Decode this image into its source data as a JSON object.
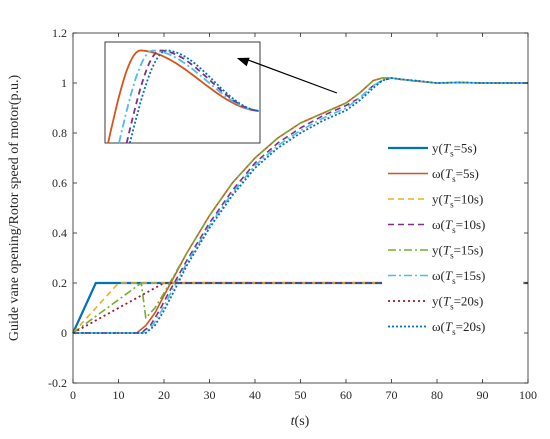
{
  "chart_data": {
    "type": "line",
    "title": "",
    "xlabel": {
      "var": "t",
      "unit": "(s)"
    },
    "ylabel": "Guide vane opening/Rotor speed of motor(p.u.)",
    "xlim": [
      0,
      100
    ],
    "ylim": [
      -0.2,
      1.2
    ],
    "xticks": [
      "0",
      "10",
      "20",
      "30",
      "40",
      "50",
      "60",
      "70",
      "80",
      "90",
      "100"
    ],
    "yticks": [
      "-0.2",
      "0",
      "0.2",
      "0.4",
      "0.6",
      "0.8",
      "1",
      "1.2"
    ],
    "grid": false,
    "legend_position": "right",
    "series": [
      {
        "name": "y(Ts=5s)",
        "legend": {
          "pre": "y(",
          "sym": "T",
          "sub": "s",
          "post": "=5s)"
        },
        "color": "#0072BD",
        "dash": "",
        "width": 2.2,
        "x": [
          0,
          5,
          15,
          18.5,
          20,
          25,
          30,
          35,
          40,
          45,
          50,
          55,
          60,
          63,
          66,
          68,
          70,
          72,
          75,
          80,
          85,
          90,
          95,
          100
        ],
        "y": [
          0,
          0.2,
          0.2,
          0.2,
          0.2,
          0.2,
          0.2,
          0.2,
          0.2,
          0.2,
          0.2,
          0.2,
          0.2,
          0.2,
          0.2,
          0.2,
          0.2,
          0.2,
          0.2,
          0.2,
          0.2,
          0.2,
          0.2,
          0.2
        ]
      },
      {
        "name": "ω(Ts=5s)",
        "legend": {
          "pre": "ω(",
          "sym": "T",
          "sub": "s",
          "post": "=5s)"
        },
        "color": "#D95319",
        "dash": "",
        "width": 1.6,
        "x": [
          0,
          14,
          16,
          18,
          20,
          25,
          30,
          35,
          40,
          45,
          50,
          55,
          60,
          63,
          66,
          68,
          70,
          72,
          75,
          80,
          85,
          90,
          95,
          100
        ],
        "y": [
          0,
          0,
          0.03,
          0.08,
          0.15,
          0.32,
          0.47,
          0.6,
          0.7,
          0.78,
          0.84,
          0.88,
          0.92,
          0.96,
          1.01,
          1.02,
          1.02,
          1.015,
          1.008,
          1.0,
          1.002,
          1.0,
          1.0,
          1.0
        ]
      },
      {
        "name": "y(Ts=10s)",
        "legend": {
          "pre": "y(",
          "sym": "T",
          "sub": "s",
          "post": "=10s)"
        },
        "color": "#EDB120",
        "dash": "6,4",
        "width": 1.6,
        "x": [
          0,
          10,
          20,
          30,
          40,
          50,
          60,
          70,
          80,
          90,
          100
        ],
        "y": [
          0,
          0.2,
          0.2,
          0.2,
          0.2,
          0.2,
          0.2,
          0.2,
          0.2,
          0.2,
          0.2
        ]
      },
      {
        "name": "ω(Ts=10s)",
        "legend": {
          "pre": "ω(",
          "sym": "T",
          "sub": "s",
          "post": "=10s)"
        },
        "color": "#7E2F8E",
        "dash": "6,4",
        "width": 1.6,
        "x": [
          0,
          15,
          17,
          19,
          21,
          25,
          30,
          35,
          40,
          45,
          50,
          55,
          60,
          63,
          66,
          68,
          70,
          72,
          75,
          80,
          85,
          90,
          95,
          100
        ],
        "y": [
          0,
          0,
          0.03,
          0.09,
          0.16,
          0.29,
          0.44,
          0.57,
          0.68,
          0.76,
          0.82,
          0.87,
          0.91,
          0.94,
          0.99,
          1.01,
          1.02,
          1.015,
          1.01,
          1.0,
          1.002,
          1.0,
          1.0,
          1.0
        ]
      },
      {
        "name": "y(Ts=15s)",
        "legend": {
          "pre": "y(",
          "sym": "T",
          "sub": "s",
          "post": "=15s)"
        },
        "color": "#77AC30",
        "dash": "8,3,2,3",
        "width": 1.6,
        "x": [
          0,
          15,
          16,
          18,
          20,
          25,
          30,
          35,
          40,
          45,
          50,
          55,
          60,
          63,
          66,
          68,
          70,
          72,
          75,
          80,
          85,
          90,
          95,
          100
        ],
        "y": [
          0,
          0.2,
          0.06,
          0.1,
          0.16,
          0.32,
          0.47,
          0.6,
          0.7,
          0.78,
          0.84,
          0.88,
          0.92,
          0.96,
          1.01,
          1.02,
          1.02,
          1.015,
          1.008,
          1.0,
          1.002,
          1.0,
          1.0,
          1.0
        ]
      },
      {
        "name": "ω(Ts=15s)",
        "legend": {
          "pre": "ω(",
          "sym": "T",
          "sub": "s",
          "post": "=15s)"
        },
        "color": "#4DBEEE",
        "dash": "8,3,2,3",
        "width": 1.6,
        "x": [
          0,
          15.5,
          17.5,
          19.5,
          21.5,
          25,
          30,
          35,
          40,
          45,
          50,
          55,
          60,
          63,
          66,
          68,
          70,
          72,
          75,
          80,
          85,
          90,
          95,
          100
        ],
        "y": [
          0,
          0,
          0.03,
          0.09,
          0.16,
          0.28,
          0.43,
          0.56,
          0.67,
          0.75,
          0.81,
          0.86,
          0.9,
          0.94,
          0.99,
          1.01,
          1.02,
          1.015,
          1.01,
          1.0,
          1.002,
          1.0,
          1.0,
          1.0
        ]
      },
      {
        "name": "y(Ts=20s)",
        "legend": {
          "pre": "y(",
          "sym": "T",
          "sub": "s",
          "post": "=20s)"
        },
        "color": "#A2142F",
        "dash": "2,3",
        "width": 1.8,
        "x": [
          0,
          20,
          30,
          40,
          50,
          60,
          70,
          80,
          90,
          100
        ],
        "y": [
          0,
          0.2,
          0.2,
          0.2,
          0.2,
          0.2,
          0.2,
          0.2,
          0.2,
          0.2
        ]
      },
      {
        "name": "ω(Ts=20s)",
        "legend": {
          "pre": "ω(",
          "sym": "T",
          "sub": "s",
          "post": "=20s)"
        },
        "color": "#0072BD",
        "dash": "2,2",
        "width": 1.8,
        "x": [
          0,
          16,
          18,
          20,
          22,
          25,
          30,
          35,
          40,
          45,
          50,
          55,
          60,
          63,
          66,
          68,
          70,
          72,
          75,
          80,
          85,
          90,
          95,
          100
        ],
        "y": [
          0,
          0,
          0.03,
          0.09,
          0.16,
          0.27,
          0.42,
          0.55,
          0.66,
          0.74,
          0.8,
          0.85,
          0.89,
          0.93,
          0.98,
          1.01,
          1.02,
          1.015,
          1.01,
          1.0,
          1.002,
          1.0,
          1.0,
          1.0
        ]
      }
    ],
    "inset": {
      "description": "zoomed view of overshoot peak near t≈69s",
      "xlim": [
        66,
        76
      ],
      "ylim": [
        0.995,
        1.025
      ],
      "curves": [
        {
          "color": "#D95319",
          "dash": "",
          "peak_x": 68.3,
          "start_x": 66.2
        },
        {
          "color": "#4DBEEE",
          "dash": "8,3,2,3",
          "peak_x": 69.1,
          "start_x": 66.9
        },
        {
          "color": "#7E2F8E",
          "dash": "6,4",
          "peak_x": 69.6,
          "start_x": 67.4
        },
        {
          "color": "#0072BD",
          "dash": "2,2",
          "peak_x": 70.0,
          "start_x": 67.6
        }
      ]
    },
    "annotation": {
      "type": "arrow",
      "from_data": [
        58,
        0.96
      ],
      "to_data": [
        36,
        1.1
      ]
    }
  }
}
